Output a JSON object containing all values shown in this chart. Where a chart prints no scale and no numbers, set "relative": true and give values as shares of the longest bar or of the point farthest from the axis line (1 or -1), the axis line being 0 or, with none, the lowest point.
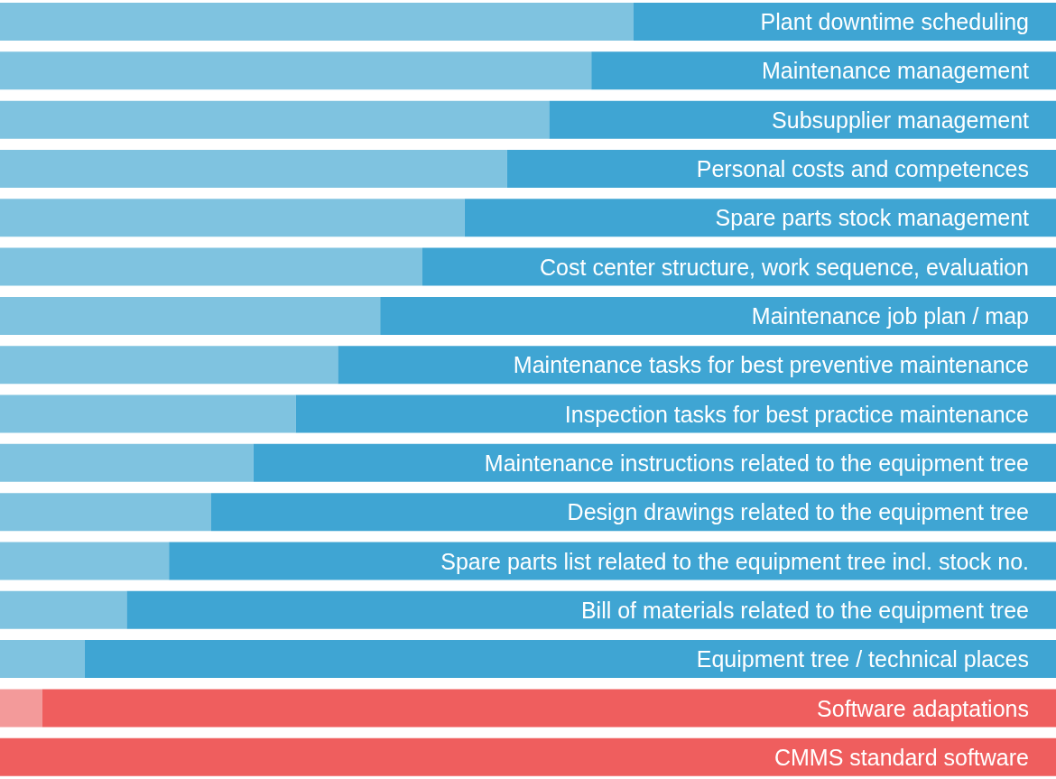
{
  "chart_data": {
    "type": "bar",
    "orientation": "horizontal",
    "stacked": true,
    "relative": true,
    "legend": false,
    "grid": false,
    "categories": [
      "Plant downtime scheduling",
      "Maintenance management",
      "Subsupplier management",
      "Personal costs and competences",
      "Spare parts stock management",
      "Cost center structure, work sequence, evaluation",
      "Maintenance job plan / map",
      "Maintenance tasks for best preventive maintenance",
      "Inspection tasks for best practice maintenance",
      "Maintenance instructions related to the equipment tree",
      "Design drawings related to the equipment tree",
      "Spare parts list related to the equipment tree incl. stock no.",
      "Bill of materials related to the equipment tree",
      "Equipment tree / technical places",
      "Software adaptations",
      "CMMS standard software"
    ],
    "series": [
      {
        "values": [
          0.6,
          0.56,
          0.52,
          0.48,
          0.44,
          0.4,
          0.36,
          0.32,
          0.28,
          0.24,
          0.2,
          0.16,
          0.12,
          0.08,
          0.04,
          0
        ],
        "colors": [
          "#7fc3e0",
          "#7fc3e0",
          "#7fc3e0",
          "#7fc3e0",
          "#7fc3e0",
          "#7fc3e0",
          "#7fc3e0",
          "#7fc3e0",
          "#7fc3e0",
          "#7fc3e0",
          "#7fc3e0",
          "#7fc3e0",
          "#7fc3e0",
          "#7fc3e0",
          "#f39a9a",
          "#f39a9a"
        ]
      },
      {
        "values": [
          0.4,
          0.44,
          0.48,
          0.52,
          0.56,
          0.6,
          0.64,
          0.68,
          0.72,
          0.76,
          0.8,
          0.84,
          0.88,
          0.92,
          0.96,
          1
        ],
        "colors": [
          "#3fa5d3",
          "#3fa5d3",
          "#3fa5d3",
          "#3fa5d3",
          "#3fa5d3",
          "#3fa5d3",
          "#3fa5d3",
          "#3fa5d3",
          "#3fa5d3",
          "#3fa5d3",
          "#3fa5d3",
          "#3fa5d3",
          "#3fa5d3",
          "#3fa5d3",
          "#ef5e5e",
          "#ef5e5e"
        ]
      }
    ]
  }
}
